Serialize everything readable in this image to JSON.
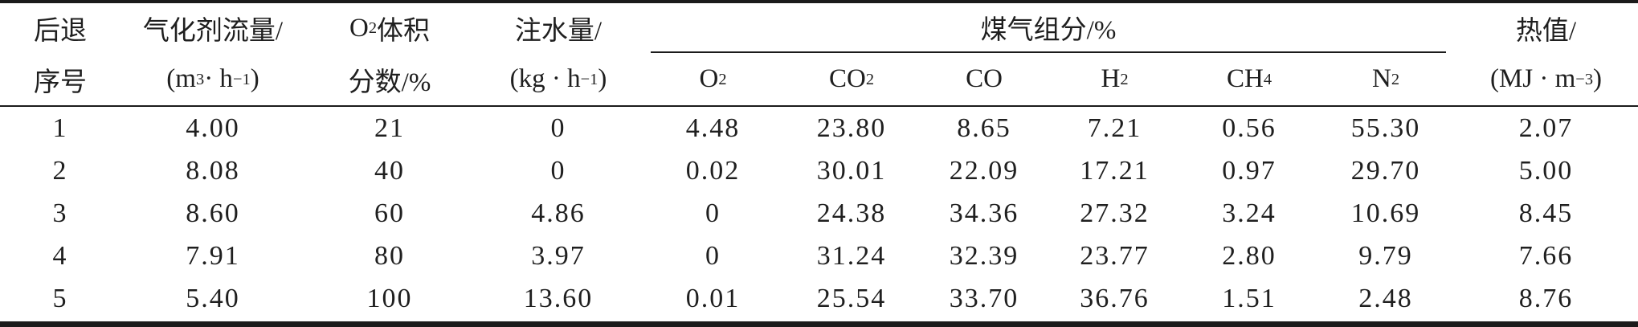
{
  "table": {
    "header": {
      "serial_line1": "后退",
      "serial_line2": "序号",
      "flow_line1": "气化剂流量/",
      "flow_unit": {
        "open": "(m",
        "sup1": "3",
        "dot": " · h",
        "sup2": "−1",
        "close": ")"
      },
      "o2_line1": {
        "main": "O",
        "sub": "2",
        "rest": " 体积"
      },
      "o2_line2": "分数/%",
      "water_line1": "注水量/",
      "water_unit": {
        "open": "(kg · h",
        "sup": "−1",
        "close": ")"
      },
      "gas_group_label": "煤气组分/%",
      "gas_columns": [
        {
          "formula": "O",
          "subscript": "2"
        },
        {
          "formula": "CO",
          "subscript": "2"
        },
        {
          "formula": "CO",
          "subscript": ""
        },
        {
          "formula": "H",
          "subscript": "2"
        },
        {
          "formula": "CH",
          "subscript": "4"
        },
        {
          "formula": "N",
          "subscript": "2"
        }
      ],
      "heat_line1": "热值/",
      "heat_unit": {
        "open": "(MJ · m",
        "sup": "−3",
        "close": ")"
      }
    },
    "rows": [
      [
        "1",
        "4.00",
        "21",
        "0",
        "4.48",
        "23.80",
        "8.65",
        "7.21",
        "0.56",
        "55.30",
        "2.07"
      ],
      [
        "2",
        "8.08",
        "40",
        "0",
        "0.02",
        "30.01",
        "22.09",
        "17.21",
        "0.97",
        "29.70",
        "5.00"
      ],
      [
        "3",
        "8.60",
        "60",
        "4.86",
        "0",
        "24.38",
        "34.36",
        "27.32",
        "3.24",
        "10.69",
        "8.45"
      ],
      [
        "4",
        "7.91",
        "80",
        "3.97",
        "0",
        "31.24",
        "32.39",
        "23.77",
        "2.80",
        "9.79",
        "7.66"
      ],
      [
        "5",
        "5.40",
        "100",
        "13.60",
        "0.01",
        "25.54",
        "33.70",
        "36.76",
        "1.51",
        "2.48",
        "8.76"
      ]
    ]
  }
}
